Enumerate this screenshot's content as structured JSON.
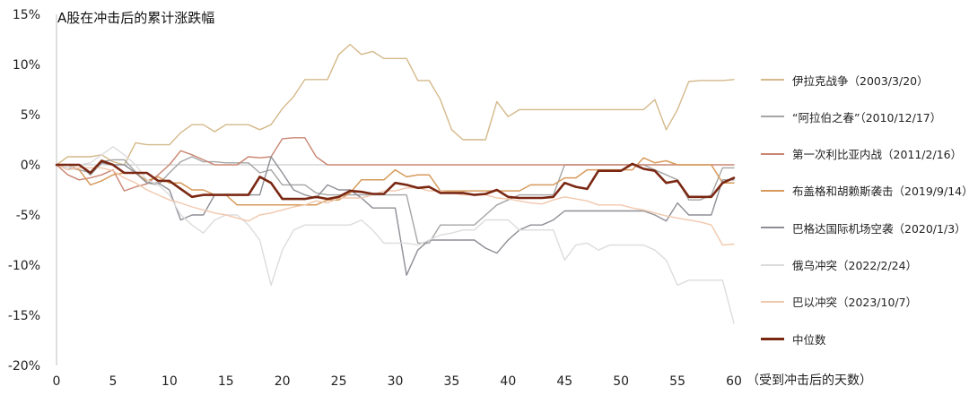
{
  "chart_data": {
    "type": "line",
    "title": "A股在冲击后的累计涨跌幅",
    "xlabel": "（受到冲击后的天数）",
    "ylabel": "",
    "xlim": [
      0,
      60
    ],
    "ylim": [
      -20,
      15
    ],
    "xticks": [
      0,
      5,
      10,
      15,
      20,
      25,
      30,
      35,
      40,
      45,
      50,
      55,
      60
    ],
    "yticks": [
      15,
      10,
      5,
      0,
      -5,
      -10,
      -15,
      -20
    ],
    "ytick_labels": [
      "15%",
      "10%",
      "5%",
      "0%",
      "-5%",
      "-10%",
      "-15%",
      "-20%"
    ],
    "zero_line": true,
    "legend_position": "right",
    "series": [
      {
        "name": "伊拉克战争（2003/3/20）",
        "color": "#d4b98a",
        "width": 1.4,
        "values": [
          0,
          0.8,
          0.8,
          0.8,
          1.0,
          0.3,
          0,
          2.2,
          2.0,
          2.0,
          2.0,
          3.2,
          4.0,
          4.0,
          3.3,
          4.0,
          4.0,
          4.0,
          3.5,
          4.0,
          5.6,
          6.8,
          8.5,
          8.5,
          8.5,
          11.0,
          12.0,
          11.0,
          11.3,
          10.6,
          10.6,
          10.6,
          8.4,
          8.4,
          6.5,
          3.5,
          2.5,
          2.5,
          2.5,
          6.3,
          4.8,
          5.5,
          5.5,
          5.5,
          5.5,
          5.5,
          5.5,
          5.5,
          5.5,
          5.5,
          5.5,
          5.5,
          5.5,
          6.5,
          3.5,
          5.5,
          8.3,
          8.4,
          8.4,
          8.4,
          8.5
        ]
      },
      {
        "name": "“阿拉伯之春”（2010/12/17）",
        "color": "#a5a5a5",
        "width": 1.4,
        "values": [
          0,
          -0.3,
          -0.5,
          -0.8,
          0.3,
          0.5,
          0.5,
          -0.7,
          -1.8,
          -2.0,
          -0.8,
          0.3,
          0.8,
          0.3,
          0.3,
          0.2,
          0.2,
          0.2,
          -0.8,
          -0.5,
          -2.0,
          -2.0,
          -2.0,
          -2.8,
          -3.0,
          -3.0,
          -3.0,
          -3.0,
          -3.0,
          -3.0,
          -3.0,
          -3.0,
          -7.8,
          -7.8,
          -6.0,
          -6.0,
          -6.0,
          -6.0,
          -5.0,
          -4.0,
          -3.5,
          -3.0,
          -3.0,
          -3.0,
          -3.0,
          0,
          0,
          0,
          0,
          0,
          0,
          0,
          0,
          -0.5,
          -1.0,
          -1.5,
          -3.5,
          -3.5,
          -3.0,
          -0.3,
          -0.3
        ]
      },
      {
        "name": "第一次利比亚内战（2011/2/16）",
        "color": "#c98572",
        "width": 1.4,
        "values": [
          0,
          -1.0,
          -1.5,
          -1.3,
          -1.0,
          -0.5,
          -2.6,
          -2.2,
          -1.9,
          -1.0,
          0,
          1.4,
          1.0,
          0.5,
          0,
          0,
          0,
          0.8,
          0.7,
          0.8,
          2.6,
          2.7,
          2.7,
          0.8,
          0,
          0,
          0,
          0,
          0,
          0,
          0,
          0,
          0,
          0,
          0,
          0,
          0,
          0,
          0,
          0,
          0,
          0,
          0,
          0,
          0,
          0,
          0,
          0,
          0,
          0,
          0,
          0,
          0,
          0,
          0,
          0,
          0,
          0,
          0,
          0,
          0
        ]
      },
      {
        "name": "布盖格和胡赖斯袭击（2019/9/14）",
        "color": "#d79a5c",
        "width": 1.5,
        "values": [
          0,
          0,
          -0.5,
          -2.0,
          -1.6,
          -1.0,
          -0.8,
          -0.8,
          -1.6,
          -1.2,
          -1.8,
          -1.8,
          -2.5,
          -2.5,
          -3.0,
          -3.0,
          -4.0,
          -4.0,
          -4.0,
          -4.0,
          -4.0,
          -4.0,
          -4.0,
          -4.0,
          -3.5,
          -3.5,
          -2.8,
          -1.5,
          -1.5,
          -1.5,
          -0.5,
          -1.2,
          -1.0,
          -1.0,
          -2.6,
          -2.6,
          -2.6,
          -2.6,
          -2.6,
          -2.6,
          -2.6,
          -2.6,
          -2.0,
          -2.0,
          -2.0,
          -1.3,
          -1.3,
          -0.5,
          -0.5,
          -0.5,
          -0.5,
          -0.5,
          0.7,
          0.2,
          0.4,
          0,
          0,
          0,
          0,
          -1.8,
          -1.8
        ]
      },
      {
        "name": "巴格达国际机场空袭（2020/1/3）",
        "color": "#8e8e96",
        "width": 1.4,
        "values": [
          0,
          0,
          0,
          -1.0,
          0.2,
          0,
          0,
          -0.8,
          -1.8,
          -1.8,
          -2.5,
          -5.5,
          -5.0,
          -5.0,
          -3.0,
          -3.0,
          -3.0,
          -3.0,
          -3.0,
          0.8,
          -0.8,
          -2.5,
          -3.0,
          -3.3,
          -2.0,
          -2.5,
          -2.5,
          -3.3,
          -4.3,
          -4.3,
          -4.3,
          -11.0,
          -8.5,
          -7.5,
          -7.5,
          -7.5,
          -7.5,
          -7.5,
          -8.3,
          -8.8,
          -7.5,
          -6.5,
          -6.0,
          -6.0,
          -5.5,
          -4.6,
          -4.6,
          -4.6,
          -4.6,
          -4.6,
          -4.6,
          -4.6,
          -4.6,
          -5.0,
          -5.6,
          -3.8,
          -5.0,
          -5.0,
          -5.0,
          -1.5,
          -1.5
        ]
      },
      {
        "name": "俄乌冲突（2022/2/24）",
        "color": "#dcdcdc",
        "width": 1.4,
        "values": [
          0,
          -0.3,
          0,
          0.2,
          1.0,
          1.8,
          1.0,
          0,
          -1.5,
          -2.0,
          -3.0,
          -5.0,
          -6.0,
          -6.8,
          -5.5,
          -5.0,
          -5.0,
          -6.0,
          -7.5,
          -12.0,
          -8.5,
          -6.5,
          -6.0,
          -6.0,
          -6.0,
          -6.0,
          -6.0,
          -5.5,
          -6.5,
          -7.8,
          -7.8,
          -7.8,
          -8.0,
          -7.5,
          -7.0,
          -6.8,
          -6.5,
          -6.5,
          -5.5,
          -5.5,
          -5.5,
          -6.5,
          -6.5,
          -6.5,
          -6.5,
          -9.5,
          -8.0,
          -7.8,
          -8.5,
          -8.0,
          -8.0,
          -8.0,
          -8.0,
          -8.5,
          -9.5,
          -12.0,
          -11.5,
          -11.5,
          -11.5,
          -11.5,
          -15.8
        ]
      },
      {
        "name": "巴以冲突（2023/10/7）",
        "color": "#f1c8ad",
        "width": 1.4,
        "values": [
          0,
          -0.5,
          -0.3,
          -0.3,
          -0.3,
          -0.6,
          -1.3,
          -1.8,
          -2.5,
          -3.0,
          -3.5,
          -3.8,
          -4.2,
          -4.5,
          -4.8,
          -5.0,
          -5.3,
          -5.6,
          -5.0,
          -4.8,
          -4.5,
          -4.2,
          -4.0,
          -3.6,
          -3.8,
          -3.3,
          -3.3,
          -3.3,
          -3.0,
          -2.6,
          -2.6,
          -2.3,
          -2.3,
          -2.6,
          -2.6,
          -2.8,
          -3.0,
          -3.0,
          -3.0,
          -3.3,
          -3.4,
          -3.6,
          -3.8,
          -3.9,
          -3.5,
          -3.2,
          -3.4,
          -3.6,
          -4.0,
          -4.0,
          -4.0,
          -4.3,
          -4.5,
          -4.8,
          -5.1,
          -5.3,
          -5.5,
          -5.7,
          -6.0,
          -8.0,
          -7.9
        ]
      },
      {
        "name": "中位数",
        "color": "#7a2712",
        "width": 2.6,
        "values": [
          0,
          0,
          0,
          -0.8,
          0.4,
          0,
          -0.8,
          -0.8,
          -0.8,
          -1.6,
          -1.6,
          -2.4,
          -3.2,
          -3.0,
          -3.0,
          -3.0,
          -3.0,
          -3.0,
          -1.2,
          -1.8,
          -3.4,
          -3.4,
          -3.4,
          -3.2,
          -3.4,
          -3.2,
          -2.6,
          -2.7,
          -2.9,
          -2.9,
          -1.8,
          -2.0,
          -2.3,
          -2.2,
          -2.8,
          -2.8,
          -2.8,
          -3.0,
          -2.9,
          -2.5,
          -3.2,
          -3.3,
          -3.3,
          -3.3,
          -3.2,
          -1.8,
          -2.2,
          -2.4,
          -0.6,
          -0.6,
          -0.6,
          0.1,
          -0.4,
          -0.6,
          -1.8,
          -1.6,
          -3.2,
          -3.2,
          -3.2,
          -1.8,
          -1.3
        ]
      }
    ]
  }
}
